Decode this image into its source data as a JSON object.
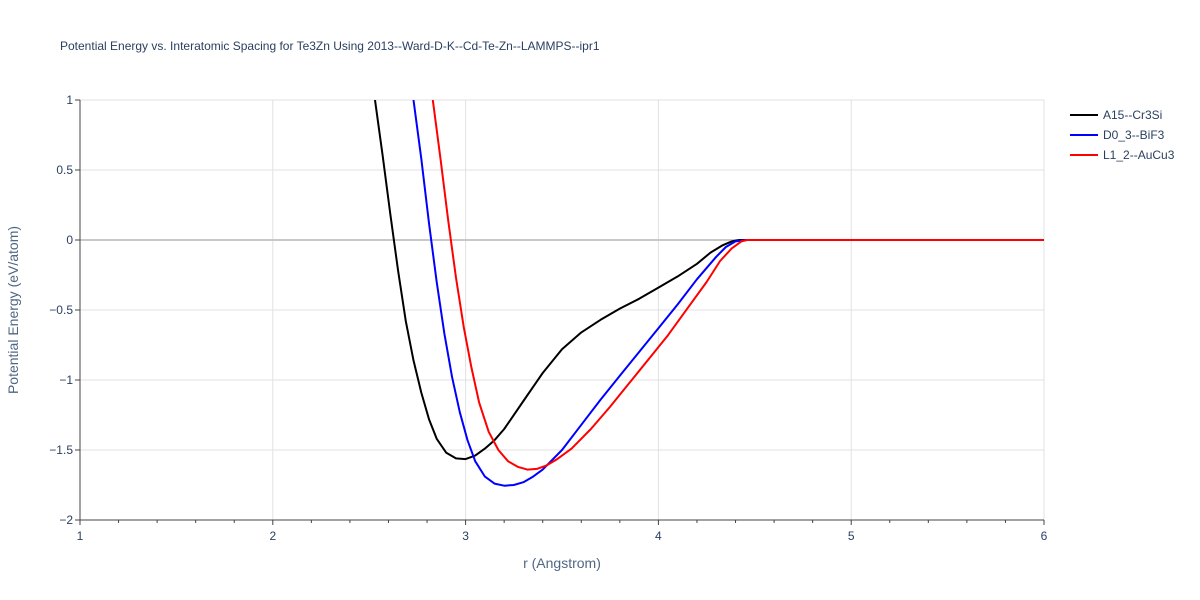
{
  "chart_data": {
    "type": "line",
    "title": "Potential Energy vs. Interatomic Spacing for Te3Zn Using 2013--Ward-D-K--Cd-Te-Zn--LAMMPS--ipr1",
    "xlabel": "r (Angstrom)",
    "ylabel": "Potential Energy (eV/atom)",
    "xlim": [
      1,
      6
    ],
    "ylim": [
      -2,
      1
    ],
    "xticks": [
      1,
      2,
      3,
      4,
      5,
      6
    ],
    "xtick_labels": [
      "1",
      "2",
      "3",
      "4",
      "5",
      "6"
    ],
    "yticks": [
      -2,
      -1.5,
      -1,
      -0.5,
      0,
      0.5,
      1
    ],
    "ytick_labels": [
      "−2",
      "−1.5",
      "−1",
      "−0.5",
      "0",
      "0.5",
      "1"
    ],
    "grid": true,
    "legend_position": "top-right",
    "series": [
      {
        "name": "A15--Cr3Si",
        "color": "#000000",
        "x": [
          2.53,
          2.57,
          2.61,
          2.65,
          2.69,
          2.73,
          2.77,
          2.81,
          2.85,
          2.9,
          2.95,
          3.0,
          3.05,
          3.1,
          3.15,
          3.2,
          3.3,
          3.4,
          3.5,
          3.6,
          3.7,
          3.8,
          3.9,
          4.0,
          4.1,
          4.2,
          4.27,
          4.33,
          4.38,
          4.42,
          4.45,
          4.6,
          5.0,
          5.5,
          6.0
        ],
        "y": [
          1.0,
          0.6,
          0.18,
          -0.22,
          -0.58,
          -0.86,
          -1.09,
          -1.28,
          -1.42,
          -1.52,
          -1.56,
          -1.565,
          -1.54,
          -1.49,
          -1.43,
          -1.35,
          -1.15,
          -0.95,
          -0.78,
          -0.66,
          -0.57,
          -0.49,
          -0.42,
          -0.34,
          -0.26,
          -0.17,
          -0.09,
          -0.04,
          -0.01,
          0.0,
          0.0,
          0.0,
          0.0,
          0.0,
          0.0
        ]
      },
      {
        "name": "D0_3--BiF3",
        "color": "#0000ff",
        "x": [
          2.73,
          2.77,
          2.81,
          2.85,
          2.89,
          2.93,
          2.97,
          3.01,
          3.05,
          3.1,
          3.15,
          3.2,
          3.25,
          3.3,
          3.35,
          3.4,
          3.5,
          3.6,
          3.7,
          3.8,
          3.9,
          4.0,
          4.1,
          4.2,
          4.3,
          4.35,
          4.4,
          4.45,
          4.6,
          5.0,
          5.5,
          6.0
        ],
        "y": [
          1.0,
          0.58,
          0.12,
          -0.3,
          -0.67,
          -0.98,
          -1.23,
          -1.43,
          -1.58,
          -1.69,
          -1.74,
          -1.755,
          -1.75,
          -1.73,
          -1.69,
          -1.64,
          -1.5,
          -1.32,
          -1.14,
          -0.97,
          -0.8,
          -0.63,
          -0.46,
          -0.28,
          -0.12,
          -0.05,
          -0.01,
          0.0,
          0.0,
          0.0,
          0.0,
          0.0
        ]
      },
      {
        "name": "L1_2--AuCu3",
        "color": "#ff0000",
        "x": [
          2.83,
          2.87,
          2.91,
          2.95,
          2.99,
          3.03,
          3.07,
          3.12,
          3.17,
          3.22,
          3.27,
          3.32,
          3.37,
          3.42,
          3.47,
          3.55,
          3.65,
          3.75,
          3.85,
          3.95,
          4.05,
          4.15,
          4.25,
          4.32,
          4.38,
          4.43,
          4.46,
          4.6,
          5.0,
          5.5,
          6.0
        ],
        "y": [
          1.0,
          0.58,
          0.14,
          -0.27,
          -0.62,
          -0.91,
          -1.16,
          -1.37,
          -1.5,
          -1.58,
          -1.62,
          -1.64,
          -1.635,
          -1.61,
          -1.57,
          -1.49,
          -1.35,
          -1.19,
          -1.02,
          -0.85,
          -0.68,
          -0.49,
          -0.3,
          -0.15,
          -0.06,
          -0.01,
          0.0,
          0.0,
          0.0,
          0.0,
          0.0
        ]
      }
    ]
  }
}
